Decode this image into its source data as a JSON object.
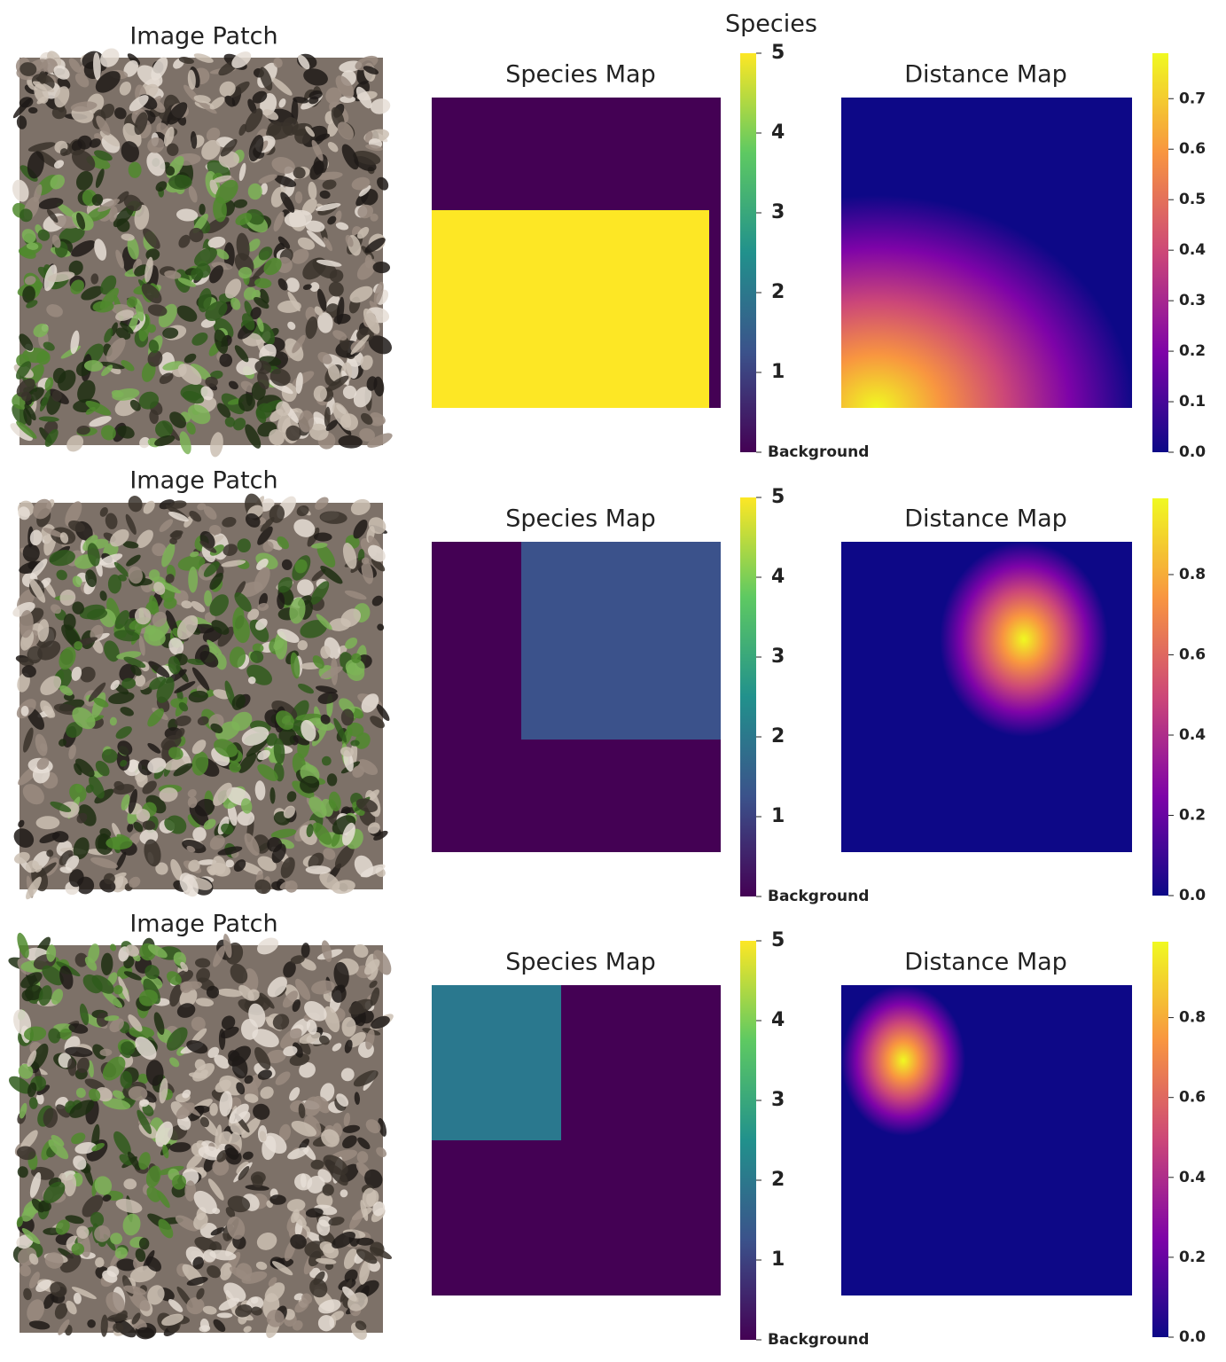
{
  "species_colorbar_title": "Species",
  "rows": [
    {
      "image_title": "Image Patch",
      "species_title": "Species Map",
      "distance_title": "Distance Map",
      "species_lim": [
        0,
        5
      ],
      "species_ticks": [
        {
          "value": 0,
          "label": "Background"
        },
        1,
        2,
        3,
        4,
        5
      ],
      "distance_lim": [
        0,
        0.79
      ],
      "distance_ticks": [
        {
          "value": 0,
          "label": "0.0"
        },
        0.1,
        0.2,
        0.3,
        0.4,
        0.5,
        0.6,
        0.7
      ]
    },
    {
      "image_title": "Image Patch",
      "species_title": "Species Map",
      "distance_title": "Distance Map",
      "species_lim": [
        0,
        5
      ],
      "species_ticks": [
        {
          "value": 0,
          "label": "Background"
        },
        1,
        2,
        3,
        4,
        5
      ],
      "distance_lim": [
        0,
        0.99
      ],
      "distance_ticks": [
        {
          "value": 0,
          "label": "0.0"
        },
        0.2,
        0.4,
        0.6,
        0.8
      ]
    },
    {
      "image_title": "Image Patch",
      "species_title": "Species Map",
      "distance_title": "Distance Map",
      "species_lim": [
        0,
        5
      ],
      "species_ticks": [
        {
          "value": 0,
          "label": "Background"
        },
        1,
        2,
        3,
        4,
        5
      ],
      "distance_lim": [
        0,
        0.99
      ],
      "distance_ticks": [
        {
          "value": 0,
          "label": "0.0"
        },
        0.2,
        0.4,
        0.6,
        0.8
      ]
    }
  ]
}
